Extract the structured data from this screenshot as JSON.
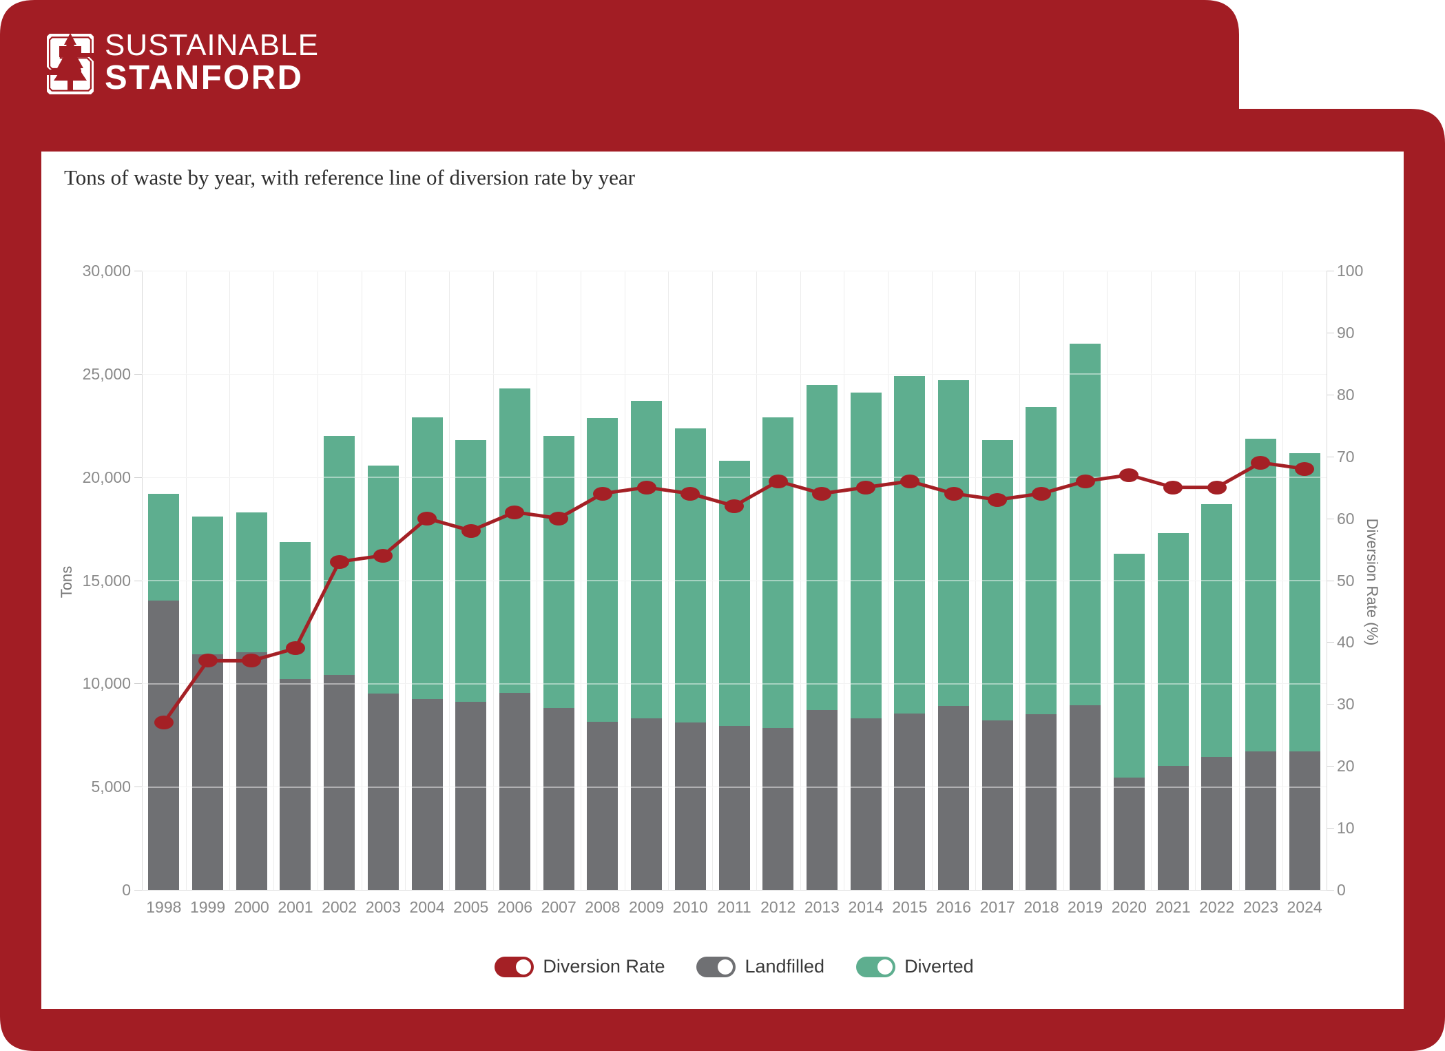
{
  "header": {
    "brand_line1": "SUSTAINABLE",
    "brand_line2": "STANFORD",
    "logo": "stanford-block-s-tree-logo"
  },
  "title": "Tons of waste by year, with reference line of diversion rate by year",
  "colors": {
    "frame_red": "#A21D24",
    "line_red": "#A42025",
    "diverted_green": "#5EAE8F",
    "landfilled_gray": "#6F7073",
    "panel_white": "#FFFFFF"
  },
  "chart_data": {
    "type": "combo-stacked-bar-line",
    "title": "Tons of waste by year, with reference line of diversion rate by year",
    "stacking": "stacked",
    "grid": true,
    "legend_position": "bottom",
    "categories": [
      "1998",
      "1999",
      "2000",
      "2001",
      "2002",
      "2003",
      "2004",
      "2005",
      "2006",
      "2007",
      "2008",
      "2009",
      "2010",
      "2011",
      "2012",
      "2013",
      "2014",
      "2015",
      "2016",
      "2017",
      "2018",
      "2019",
      "2020",
      "2021",
      "2022",
      "2023",
      "2024"
    ],
    "series": [
      {
        "name": "Landfilled",
        "color": "#6F7073",
        "axis": "left",
        "values": [
          14000,
          11400,
          11500,
          10200,
          10400,
          9500,
          9250,
          9100,
          9550,
          8800,
          8150,
          8300,
          8100,
          7950,
          7850,
          8700,
          8300,
          8550,
          8900,
          8200,
          8500,
          8950,
          5450,
          6000,
          6450,
          6700,
          6700
        ]
      },
      {
        "name": "Diverted",
        "color": "#5EAE8F",
        "axis": "left",
        "values": [
          5200,
          6700,
          6800,
          6650,
          11600,
          11050,
          13650,
          12700,
          14750,
          13200,
          14700,
          15400,
          14250,
          12850,
          15050,
          15750,
          15800,
          16350,
          15800,
          13600,
          14900,
          17500,
          10850,
          11300,
          12250,
          15150,
          14450
        ]
      }
    ],
    "line_series": {
      "name": "Diversion Rate",
      "color": "#A42025",
      "axis": "right",
      "values": [
        27,
        37,
        37,
        39,
        53,
        54,
        60,
        58,
        61,
        60,
        64,
        65,
        64,
        62,
        66,
        64,
        65,
        66,
        64,
        63,
        64,
        66,
        67,
        65,
        65,
        69,
        68
      ]
    },
    "left_axis": {
      "label": "Tons",
      "min": 0,
      "max": 30000,
      "tick_step": 5000,
      "tick_labels": [
        "0",
        "5,000",
        "10,000",
        "15,000",
        "20,000",
        "25,000",
        "30,000"
      ]
    },
    "right_axis": {
      "label": "Diversion Rate (%)",
      "min": 0,
      "max": 100,
      "tick_step": 10,
      "tick_labels": [
        "0",
        "10",
        "20",
        "30",
        "40",
        "50",
        "60",
        "70",
        "80",
        "90",
        "100"
      ]
    }
  },
  "legend": {
    "items": [
      {
        "label": "Diversion Rate",
        "color": "#A42025"
      },
      {
        "label": "Landfilled",
        "color": "#6F7073"
      },
      {
        "label": "Diverted",
        "color": "#5EAE8F"
      }
    ]
  }
}
